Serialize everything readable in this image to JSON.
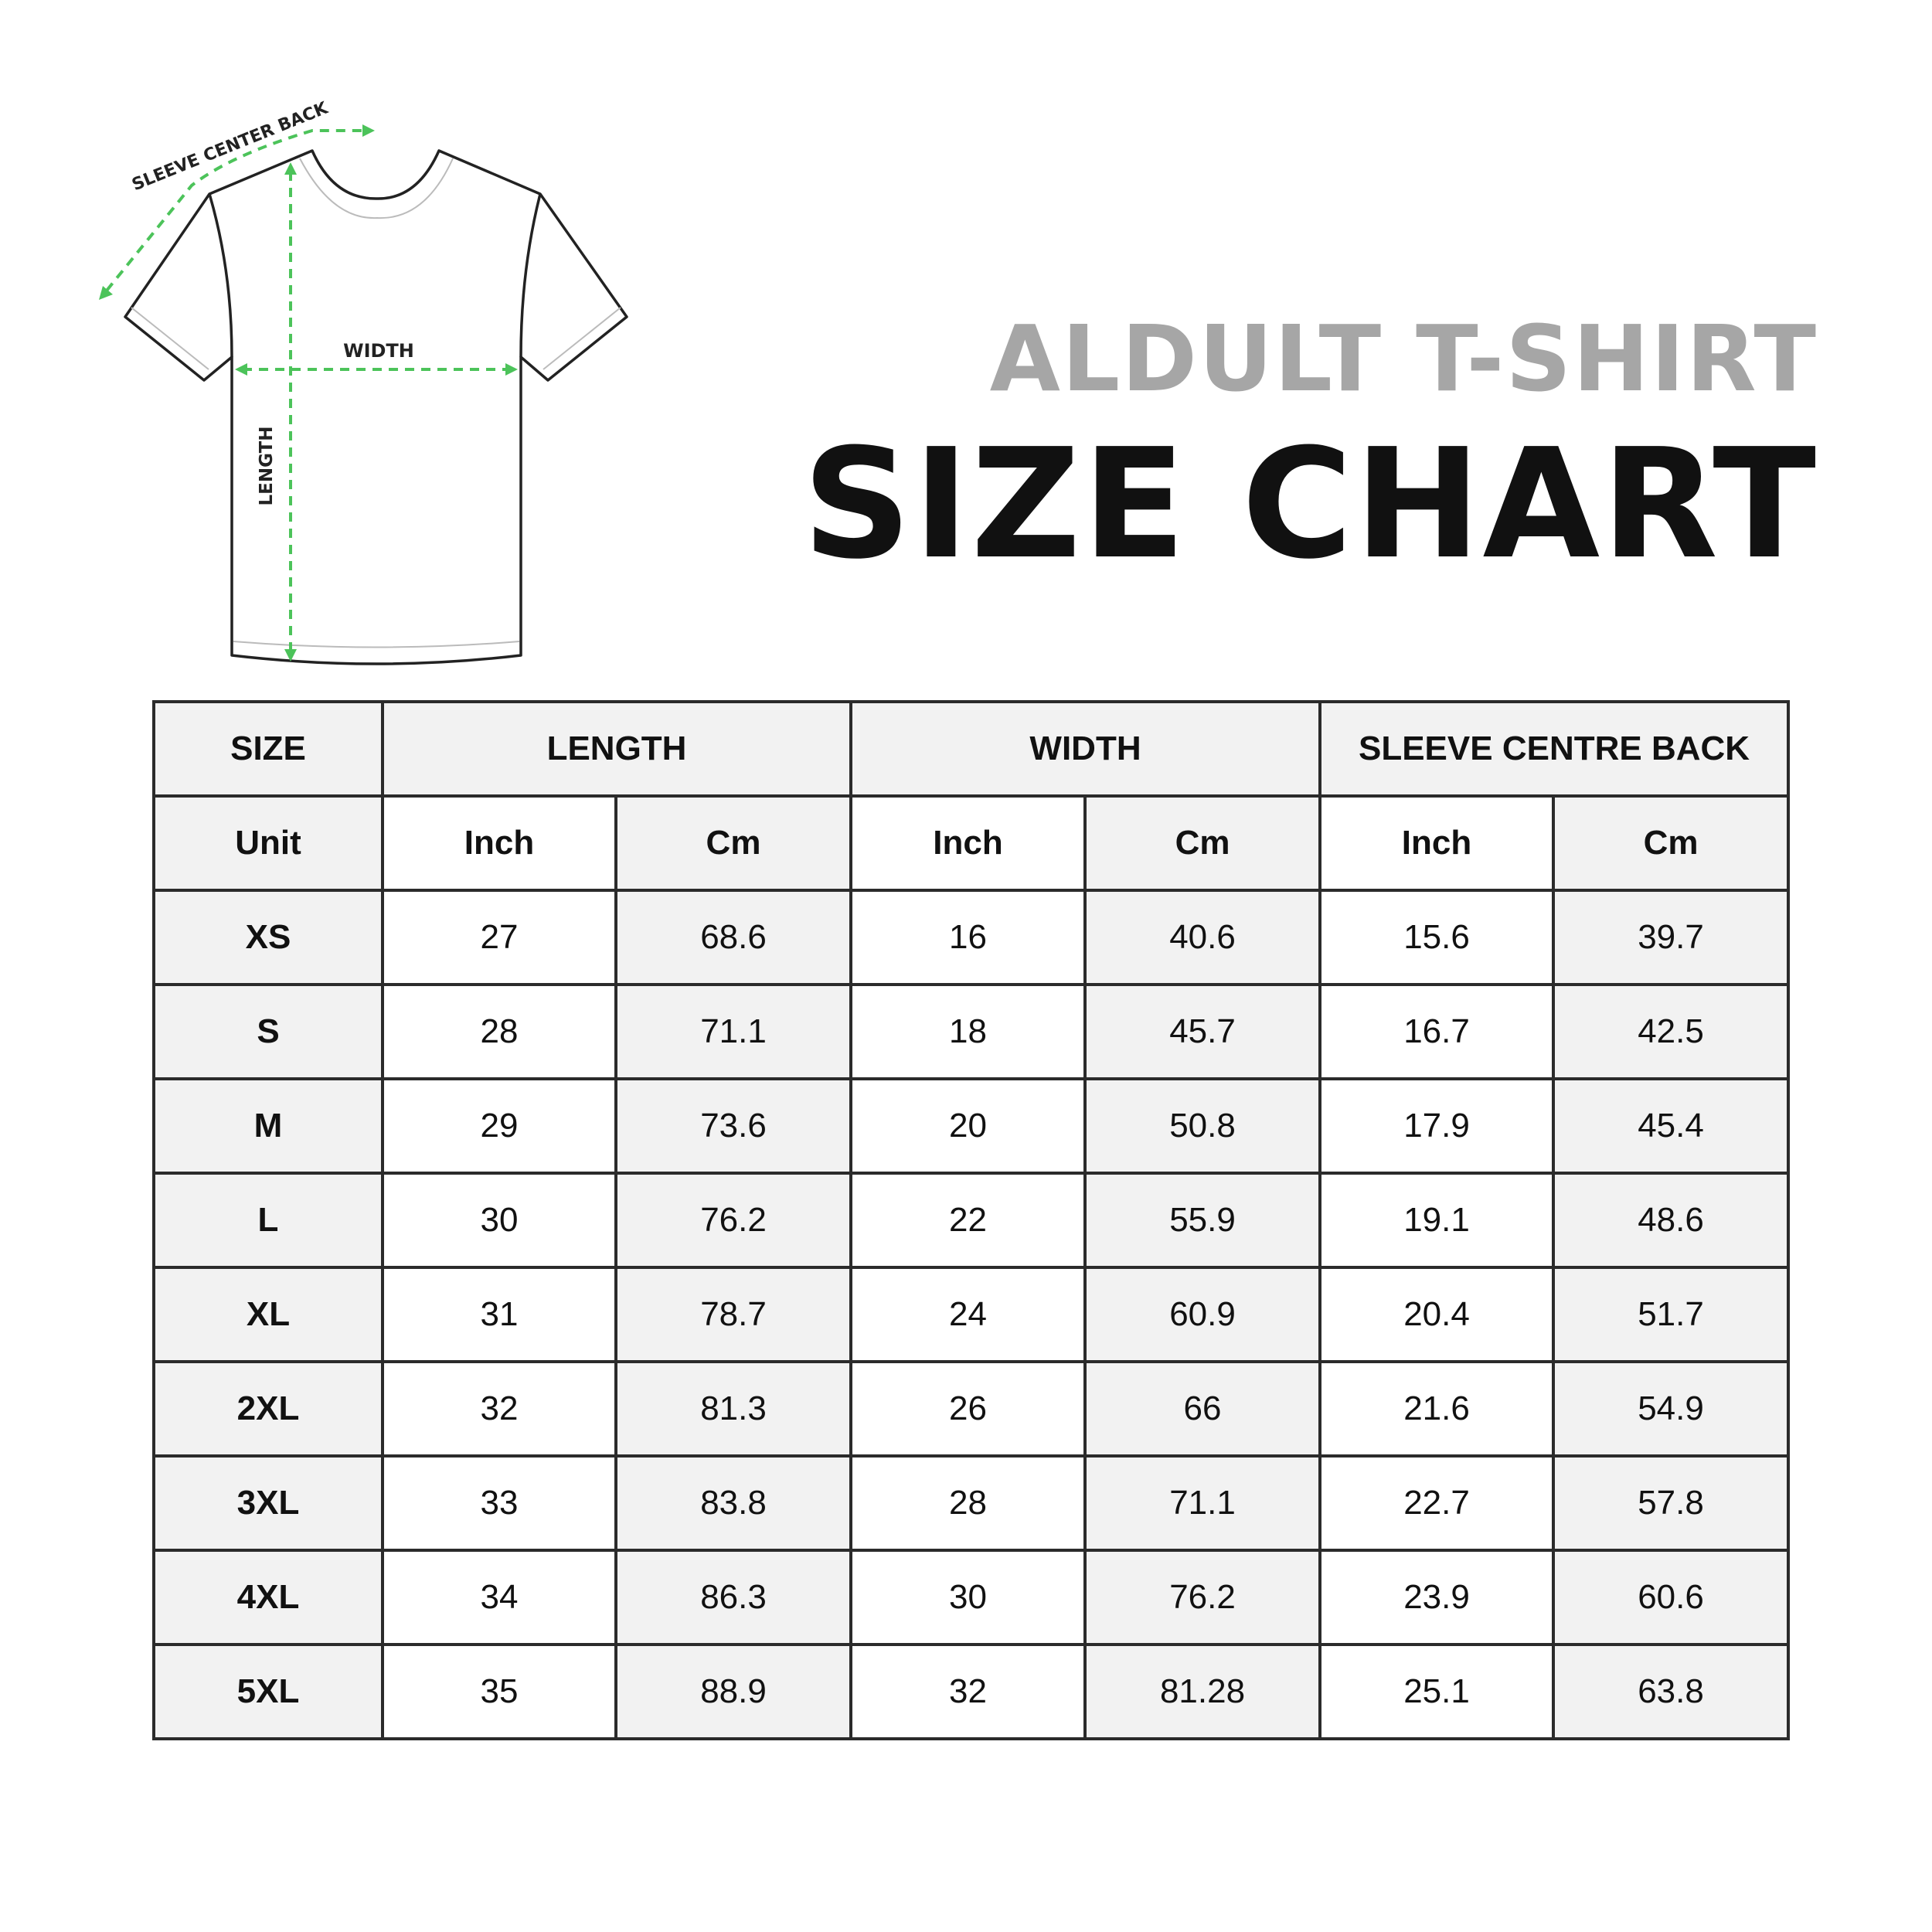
{
  "diagram": {
    "labels": {
      "sleeve": "SLEEVE CENTER BACK",
      "width": "WIDTH",
      "length": "LENGTH"
    },
    "arrow_color": "#4cc35a",
    "outline_color": "#222222"
  },
  "title": {
    "line1": "ALDULT T-SHIRT",
    "line2": "SIZE CHART",
    "line1_color": "#a6a6a6",
    "line2_color": "#111111"
  },
  "table": {
    "header": [
      "SIZE",
      "LENGTH",
      "WIDTH",
      "SLEEVE CENTRE BACK"
    ],
    "units": [
      "Unit",
      "Inch",
      "Cm",
      "Inch",
      "Cm",
      "Inch",
      "Cm"
    ],
    "rows": [
      [
        "XS",
        "27",
        "68.6",
        "16",
        "40.6",
        "15.6",
        "39.7"
      ],
      [
        "S",
        "28",
        "71.1",
        "18",
        "45.7",
        "16.7",
        "42.5"
      ],
      [
        "M",
        "29",
        "73.6",
        "20",
        "50.8",
        "17.9",
        "45.4"
      ],
      [
        "L",
        "30",
        "76.2",
        "22",
        "55.9",
        "19.1",
        "48.6"
      ],
      [
        "XL",
        "31",
        "78.7",
        "24",
        "60.9",
        "20.4",
        "51.7"
      ],
      [
        "2XL",
        "32",
        "81.3",
        "26",
        "66",
        "21.6",
        "54.9"
      ],
      [
        "3XL",
        "33",
        "83.8",
        "28",
        "71.1",
        "22.7",
        "57.8"
      ],
      [
        "4XL",
        "34",
        "86.3",
        "30",
        "76.2",
        "23.9",
        "60.6"
      ],
      [
        "5XL",
        "35",
        "88.9",
        "32",
        "81.28",
        "25.1",
        "63.8"
      ]
    ],
    "shade_color": "#f2f2f2"
  }
}
